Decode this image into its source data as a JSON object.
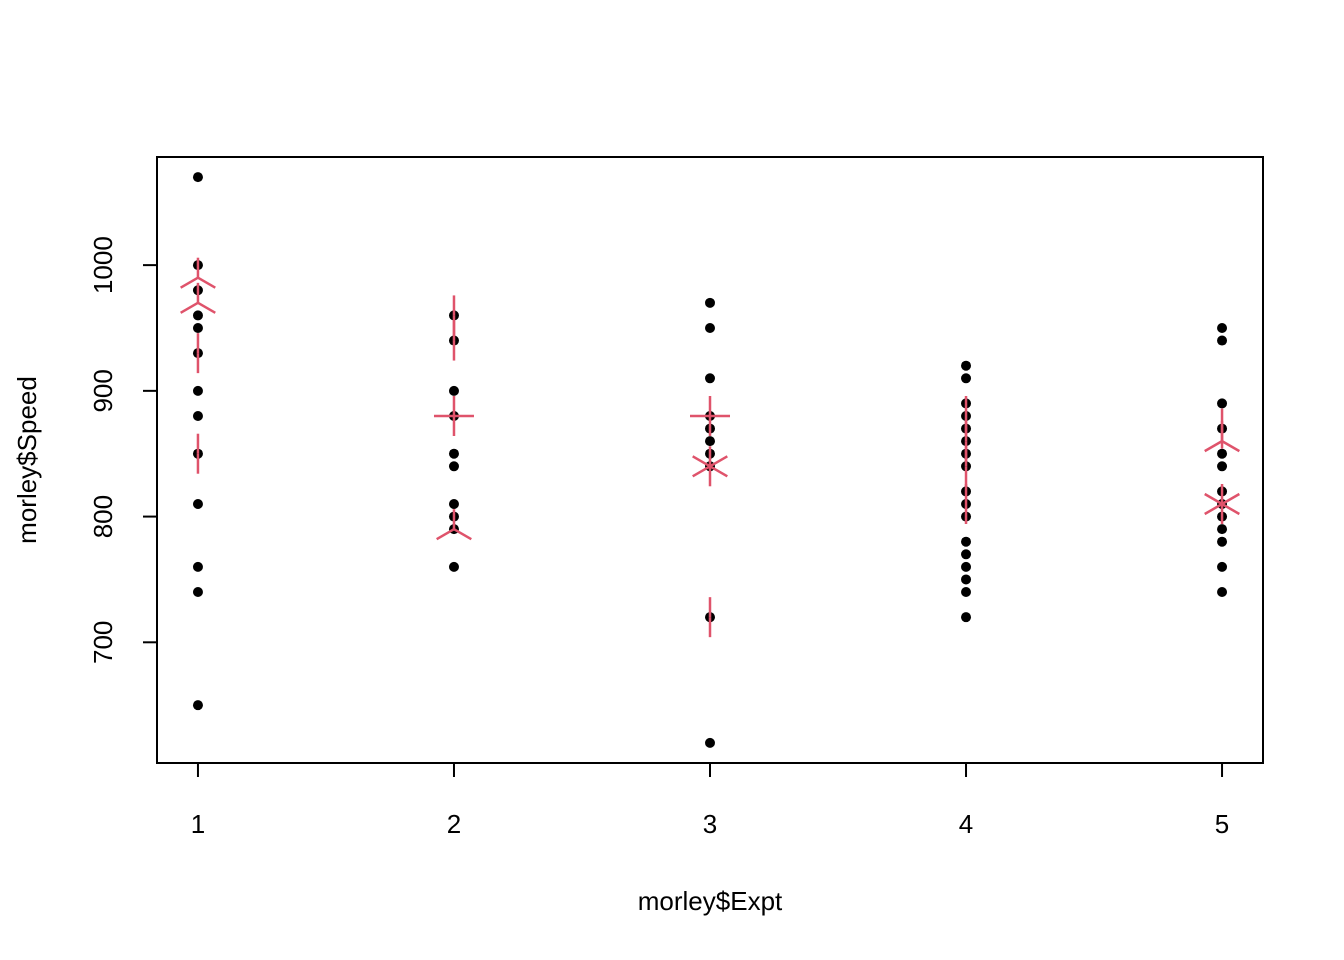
{
  "chart_data": {
    "type": "scatter",
    "title": "",
    "xlabel": "morley$Expt",
    "ylabel": "morley$Speed",
    "xlim": [
      0.84,
      5.16
    ],
    "ylim": [
      604,
      1086
    ],
    "x_ticks": [
      1,
      2,
      3,
      4,
      5
    ],
    "y_ticks": [
      700,
      800,
      900,
      1000
    ],
    "grid": false,
    "legend": "none",
    "series": [
      {
        "color": "#000000",
        "marker": "filled-circle",
        "points": [
          {
            "x": 1,
            "y": 1070
          },
          {
            "x": 1,
            "y": 1000
          },
          {
            "x": 1,
            "y": 980
          },
          {
            "x": 1,
            "y": 960
          },
          {
            "x": 1,
            "y": 950
          },
          {
            "x": 1,
            "y": 930
          },
          {
            "x": 1,
            "y": 900
          },
          {
            "x": 1,
            "y": 880
          },
          {
            "x": 1,
            "y": 850
          },
          {
            "x": 1,
            "y": 810
          },
          {
            "x": 1,
            "y": 760
          },
          {
            "x": 1,
            "y": 740
          },
          {
            "x": 1,
            "y": 650
          },
          {
            "x": 2,
            "y": 960
          },
          {
            "x": 2,
            "y": 940
          },
          {
            "x": 2,
            "y": 900
          },
          {
            "x": 2,
            "y": 880
          },
          {
            "x": 2,
            "y": 850
          },
          {
            "x": 2,
            "y": 840
          },
          {
            "x": 2,
            "y": 810
          },
          {
            "x": 2,
            "y": 800
          },
          {
            "x": 2,
            "y": 790
          },
          {
            "x": 2,
            "y": 760
          },
          {
            "x": 3,
            "y": 970
          },
          {
            "x": 3,
            "y": 950
          },
          {
            "x": 3,
            "y": 910
          },
          {
            "x": 3,
            "y": 880
          },
          {
            "x": 3,
            "y": 870
          },
          {
            "x": 3,
            "y": 860
          },
          {
            "x": 3,
            "y": 850
          },
          {
            "x": 3,
            "y": 840
          },
          {
            "x": 3,
            "y": 720
          },
          {
            "x": 3,
            "y": 620
          },
          {
            "x": 4,
            "y": 920
          },
          {
            "x": 4,
            "y": 910
          },
          {
            "x": 4,
            "y": 890
          },
          {
            "x": 4,
            "y": 880
          },
          {
            "x": 4,
            "y": 870
          },
          {
            "x": 4,
            "y": 860
          },
          {
            "x": 4,
            "y": 850
          },
          {
            "x": 4,
            "y": 840
          },
          {
            "x": 4,
            "y": 820
          },
          {
            "x": 4,
            "y": 810
          },
          {
            "x": 4,
            "y": 800
          },
          {
            "x": 4,
            "y": 780
          },
          {
            "x": 4,
            "y": 770
          },
          {
            "x": 4,
            "y": 760
          },
          {
            "x": 4,
            "y": 750
          },
          {
            "x": 4,
            "y": 740
          },
          {
            "x": 4,
            "y": 720
          },
          {
            "x": 5,
            "y": 950
          },
          {
            "x": 5,
            "y": 940
          },
          {
            "x": 5,
            "y": 890
          },
          {
            "x": 5,
            "y": 870
          },
          {
            "x": 5,
            "y": 850
          },
          {
            "x": 5,
            "y": 840
          },
          {
            "x": 5,
            "y": 820
          },
          {
            "x": 5,
            "y": 810
          },
          {
            "x": 5,
            "y": 800
          },
          {
            "x": 5,
            "y": 790
          },
          {
            "x": 5,
            "y": 780
          },
          {
            "x": 5,
            "y": 760
          },
          {
            "x": 5,
            "y": 740
          }
        ]
      },
      {
        "color": "#DF536B",
        "marker": "sunflower",
        "points": [
          {
            "x": 1,
            "y": 990,
            "petals": 3
          },
          {
            "x": 1,
            "y": 970,
            "petals": 3
          },
          {
            "x": 1,
            "y": 930,
            "petals": 2
          },
          {
            "x": 1,
            "y": 850,
            "petals": 2
          },
          {
            "x": 2,
            "y": 960,
            "petals": 2
          },
          {
            "x": 2,
            "y": 940,
            "petals": 2
          },
          {
            "x": 2,
            "y": 880,
            "petals": 4
          },
          {
            "x": 2,
            "y": 790,
            "petals": 3
          },
          {
            "x": 3,
            "y": 880,
            "petals": 4
          },
          {
            "x": 3,
            "y": 840,
            "petals": 6
          },
          {
            "x": 3,
            "y": 720,
            "petals": 2
          },
          {
            "x": 4,
            "y": 880,
            "petals": 2
          },
          {
            "x": 4,
            "y": 860,
            "petals": 2
          },
          {
            "x": 4,
            "y": 840,
            "petals": 2
          },
          {
            "x": 4,
            "y": 810,
            "petals": 2
          },
          {
            "x": 5,
            "y": 870,
            "petals": 2
          },
          {
            "x": 5,
            "y": 860,
            "petals": 3
          },
          {
            "x": 5,
            "y": 810,
            "petals": 6
          }
        ]
      }
    ]
  }
}
